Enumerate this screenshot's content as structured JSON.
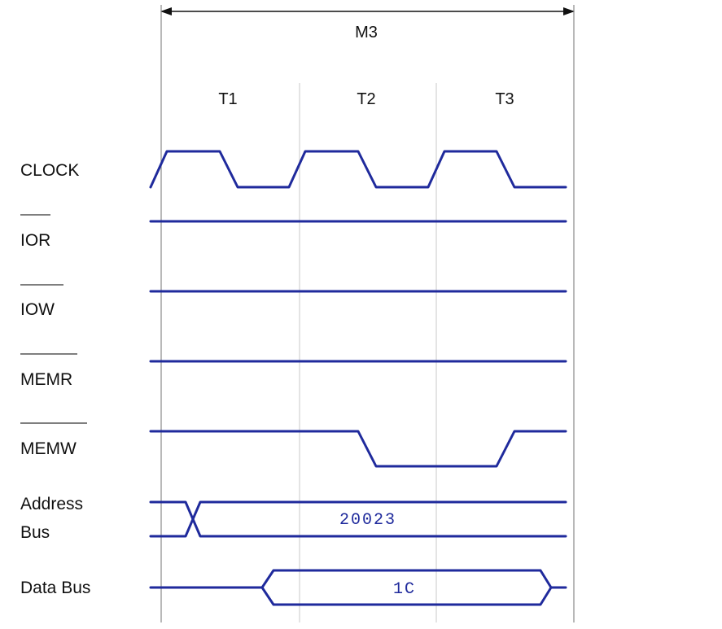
{
  "machine_cycle": "M3",
  "t_states": [
    "T1",
    "T2",
    "T3"
  ],
  "signals": [
    {
      "name": "CLOCK",
      "active_low": false
    },
    {
      "name": "IOR",
      "active_low": true
    },
    {
      "name": "IOW",
      "active_low": true
    },
    {
      "name": "MEMR",
      "active_low": true
    },
    {
      "name": "MEMW",
      "active_low": true
    },
    {
      "name_line1": "Address",
      "name_line2": "Bus"
    },
    {
      "name": "Data Bus"
    }
  ],
  "address_bus_value": "20023",
  "data_bus_value": "1C",
  "colors": {
    "wave": "#1f2a9c",
    "text": "#111111"
  }
}
